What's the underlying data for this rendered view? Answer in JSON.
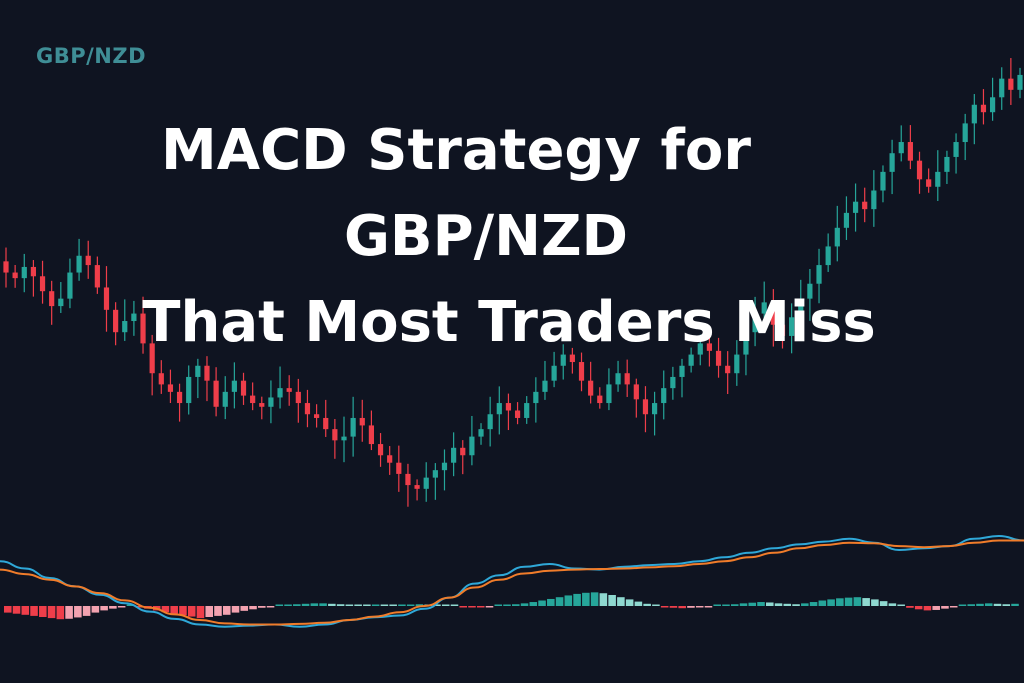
{
  "pair_label": "GBP/NZD",
  "title": {
    "line1": "MACD Strategy for",
    "line2": "GBP/NZD",
    "line3": "That Most Traders Miss"
  },
  "colors": {
    "background": "#0f1421",
    "bullish": "#26a69a",
    "bearish": "#ef3e4a",
    "macd_line": "#2fa8d8",
    "signal_line": "#f07c2a",
    "histogram_positive_strong": "#26a69a",
    "histogram_positive_weak": "#8fd9d0",
    "histogram_negative_strong": "#ef3e4a",
    "histogram_negative_weak": "#f3a2b0",
    "pair_label": "#3f8e96",
    "title": "#ffffff"
  },
  "chart_data": [
    {
      "type": "candlestick",
      "name": "",
      "grid": false,
      "x_axis": "none",
      "y_axis": "none",
      "close": [
        1.15,
        1.135,
        1.165,
        1.14,
        1.1,
        1.06,
        1.08,
        1.15,
        1.195,
        1.17,
        1.11,
        1.05,
        0.99,
        1.02,
        1.04,
        0.96,
        0.88,
        0.85,
        0.83,
        0.8,
        0.87,
        0.9,
        0.86,
        0.79,
        0.83,
        0.86,
        0.82,
        0.8,
        0.79,
        0.815,
        0.84,
        0.83,
        0.8,
        0.77,
        0.76,
        0.73,
        0.7,
        0.71,
        0.76,
        0.74,
        0.69,
        0.66,
        0.64,
        0.61,
        0.58,
        0.57,
        0.6,
        0.62,
        0.64,
        0.68,
        0.66,
        0.71,
        0.73,
        0.77,
        0.8,
        0.78,
        0.76,
        0.8,
        0.83,
        0.86,
        0.9,
        0.93,
        0.91,
        0.86,
        0.82,
        0.8,
        0.85,
        0.88,
        0.85,
        0.81,
        0.77,
        0.8,
        0.84,
        0.87,
        0.9,
        0.93,
        0.96,
        0.94,
        0.9,
        0.88,
        0.93,
        0.99,
        1.04,
        1.07,
        1.01,
        0.98,
        1.03,
        1.08,
        1.12,
        1.17,
        1.22,
        1.27,
        1.31,
        1.34,
        1.32,
        1.37,
        1.42,
        1.47,
        1.5,
        1.45,
        1.4,
        1.38,
        1.42,
        1.46,
        1.5,
        1.55,
        1.6,
        1.58,
        1.62,
        1.67,
        1.64,
        1.68
      ],
      "open_offset_note": "",
      "macd": {
        "type": "line",
        "series": [
          {
            "name": "",
            "color_key": "macd_line",
            "values": [
              0.55,
              0.42,
              0.25,
              0.1,
              -0.05,
              -0.2,
              -0.35,
              -0.48,
              -0.58,
              -0.62,
              -0.6,
              -0.58,
              -0.62,
              -0.58,
              -0.5,
              -0.45,
              -0.42,
              -0.3,
              -0.1,
              0.15,
              0.3,
              0.45,
              0.5,
              0.42,
              0.4,
              0.45,
              0.48,
              0.5,
              0.55,
              0.62,
              0.7,
              0.78,
              0.85,
              0.9,
              0.95,
              0.88,
              0.75,
              0.78,
              0.82,
              0.95,
              1.0,
              0.92
            ]
          },
          {
            "name": "",
            "color_key": "signal_line",
            "values": [
              0.4,
              0.32,
              0.22,
              0.1,
              -0.02,
              -0.15,
              -0.28,
              -0.4,
              -0.5,
              -0.56,
              -0.58,
              -0.58,
              -0.57,
              -0.55,
              -0.5,
              -0.44,
              -0.36,
              -0.25,
              -0.1,
              0.08,
              0.22,
              0.33,
              0.38,
              0.4,
              0.41,
              0.42,
              0.44,
              0.46,
              0.5,
              0.55,
              0.62,
              0.7,
              0.78,
              0.84,
              0.88,
              0.87,
              0.82,
              0.8,
              0.82,
              0.88,
              0.92,
              0.92
            ]
          }
        ]
      },
      "histogram": {
        "type": "bar",
        "values": [
          -0.3,
          -0.35,
          -0.4,
          -0.45,
          -0.5,
          -0.55,
          -0.6,
          -0.58,
          -0.52,
          -0.45,
          -0.3,
          -0.2,
          -0.12,
          -0.06,
          0.0,
          -0.05,
          -0.12,
          -0.2,
          -0.28,
          -0.35,
          -0.42,
          -0.48,
          -0.55,
          -0.5,
          -0.45,
          -0.4,
          -0.3,
          -0.22,
          -0.15,
          -0.08,
          -0.02,
          0.02,
          0.05,
          0.08,
          0.1,
          0.12,
          0.12,
          0.1,
          0.08,
          0.06,
          0.05,
          0.04,
          0.06,
          0.05,
          0.04,
          0.05,
          0.06,
          0.08,
          0.06,
          0.05,
          0.04,
          0.03,
          -0.02,
          -0.04,
          -0.05,
          -0.03,
          0.0,
          0.04,
          0.08,
          0.12,
          0.18,
          0.25,
          0.32,
          0.4,
          0.48,
          0.55,
          0.6,
          0.62,
          0.58,
          0.5,
          0.4,
          0.3,
          0.2,
          0.1,
          0.02,
          -0.05,
          -0.08,
          -0.1,
          -0.08,
          -0.05,
          -0.02,
          0.02,
          0.05,
          0.08,
          0.12,
          0.15,
          0.18,
          0.16,
          0.12,
          0.1,
          0.08,
          0.12,
          0.18,
          0.25,
          0.3,
          0.35,
          0.38,
          0.4,
          0.36,
          0.3,
          0.22,
          0.12,
          0.02,
          -0.08,
          -0.15,
          -0.2,
          -0.18,
          -0.12,
          -0.06,
          0.02,
          0.08,
          0.1,
          0.12,
          0.1,
          0.08,
          0.1
        ]
      }
    }
  ]
}
